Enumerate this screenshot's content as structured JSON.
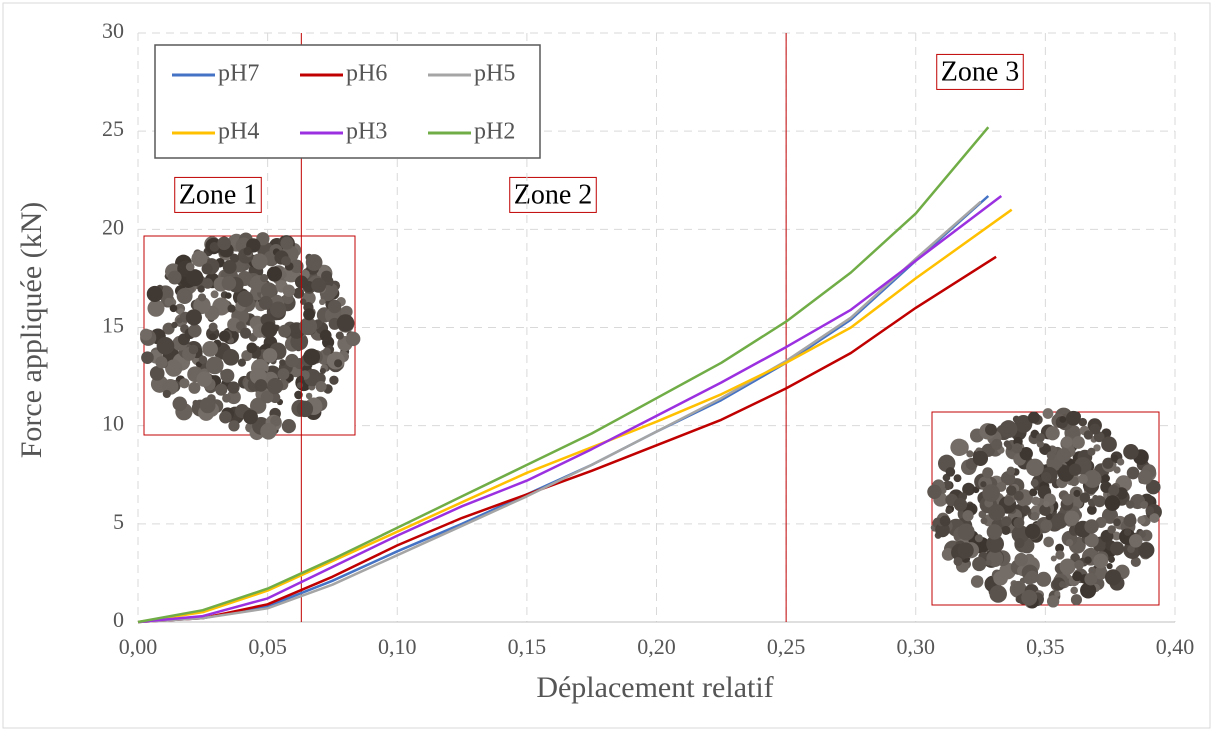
{
  "chart_data": {
    "type": "line",
    "xlabel": "Déplacement relatif",
    "ylabel": "Force appliquée (kN)",
    "xlim": [
      0,
      0.4
    ],
    "ylim": [
      0,
      30
    ],
    "xticks": [
      {
        "value": 0,
        "label": "0,00"
      },
      {
        "value": 0.05,
        "label": "0,05"
      },
      {
        "value": 0.1,
        "label": "0,10"
      },
      {
        "value": 0.15,
        "label": "0,15"
      },
      {
        "value": 0.2,
        "label": "0,20"
      },
      {
        "value": 0.25,
        "label": "0,25"
      },
      {
        "value": 0.3,
        "label": "0,30"
      },
      {
        "value": 0.35,
        "label": "0,35"
      },
      {
        "value": 0.4,
        "label": "0,40"
      }
    ],
    "yticks": [
      0,
      5,
      10,
      15,
      20,
      25,
      30
    ],
    "grid": true,
    "legend": "upper left",
    "vlines": [
      0.063,
      0.25
    ],
    "vline_color": "#c00000",
    "annotations": [
      "Zone 1",
      "Zone 2",
      "Zone 3"
    ],
    "series": [
      {
        "name": "pH7",
        "color": "#4472c4",
        "x": [
          0,
          0.025,
          0.05,
          0.075,
          0.1,
          0.125,
          0.15,
          0.175,
          0.2,
          0.225,
          0.25,
          0.275,
          0.3,
          0.328
        ],
        "values": [
          0,
          0.2,
          0.8,
          2.1,
          3.6,
          5.0,
          6.5,
          8.0,
          9.7,
          11.3,
          13.2,
          15.4,
          18.4,
          21.7
        ]
      },
      {
        "name": "pH6",
        "color": "#c00000",
        "x": [
          0,
          0.025,
          0.05,
          0.075,
          0.1,
          0.125,
          0.15,
          0.175,
          0.2,
          0.225,
          0.25,
          0.275,
          0.3,
          0.331
        ],
        "values": [
          0,
          0.2,
          0.9,
          2.3,
          3.9,
          5.3,
          6.5,
          7.7,
          9.0,
          10.3,
          11.9,
          13.7,
          16.0,
          18.6
        ]
      },
      {
        "name": "pH5",
        "color": "#a5a5a5",
        "x": [
          0,
          0.025,
          0.05,
          0.075,
          0.1,
          0.125,
          0.15,
          0.175,
          0.2,
          0.225,
          0.25,
          0.275,
          0.3,
          0.325
        ],
        "values": [
          0,
          0.2,
          0.7,
          1.9,
          3.4,
          4.9,
          6.4,
          8.0,
          9.7,
          11.4,
          13.3,
          15.5,
          18.5,
          21.4
        ]
      },
      {
        "name": "pH4",
        "color": "#ffc000",
        "x": [
          0,
          0.025,
          0.05,
          0.075,
          0.1,
          0.125,
          0.15,
          0.175,
          0.2,
          0.225,
          0.25,
          0.275,
          0.3,
          0.337
        ],
        "values": [
          0,
          0.5,
          1.6,
          3.1,
          4.6,
          6.1,
          7.6,
          8.9,
          10.2,
          11.6,
          13.2,
          15.0,
          17.5,
          21.0
        ]
      },
      {
        "name": "pH3",
        "color": "#9b30e0",
        "x": [
          0,
          0.025,
          0.05,
          0.075,
          0.1,
          0.125,
          0.15,
          0.175,
          0.2,
          0.225,
          0.25,
          0.275,
          0.3,
          0.333
        ],
        "values": [
          0,
          0.3,
          1.2,
          2.8,
          4.4,
          5.9,
          7.2,
          8.8,
          10.5,
          12.2,
          14.0,
          15.9,
          18.4,
          21.7
        ]
      },
      {
        "name": "pH2",
        "color": "#70ad47",
        "x": [
          0,
          0.025,
          0.05,
          0.075,
          0.1,
          0.125,
          0.15,
          0.175,
          0.2,
          0.225,
          0.25,
          0.275,
          0.3,
          0.328
        ],
        "values": [
          0,
          0.6,
          1.7,
          3.2,
          4.8,
          6.4,
          8.0,
          9.6,
          11.4,
          13.2,
          15.3,
          17.8,
          20.8,
          25.2
        ]
      }
    ]
  }
}
